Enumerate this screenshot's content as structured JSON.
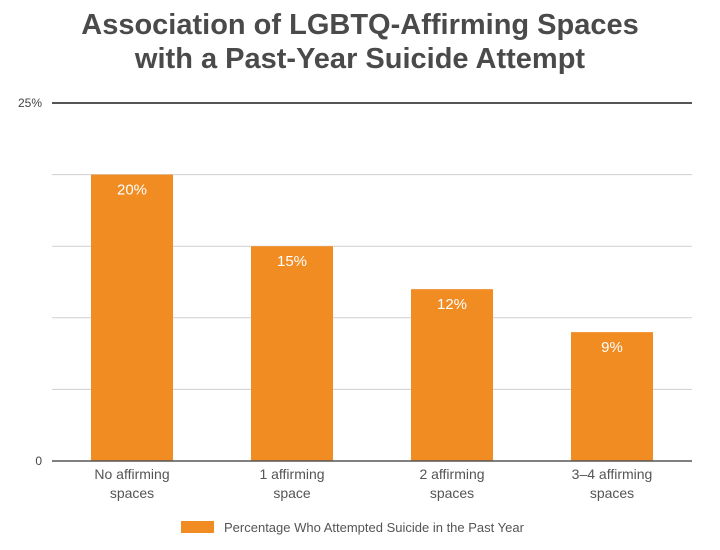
{
  "chart_data": {
    "type": "bar",
    "title_lines": [
      "Association of LGBTQ-Affirming Spaces",
      "with a Past-Year Suicide Attempt"
    ],
    "categories": [
      [
        "No affirming",
        "spaces"
      ],
      [
        "1 affirming",
        "space"
      ],
      [
        "2 affirming",
        "spaces"
      ],
      [
        "3–4 affirming",
        "spaces"
      ]
    ],
    "series": [
      {
        "name": "Percentage Who Attempted Suicide in the Past Year",
        "values": [
          20,
          15,
          12,
          9
        ],
        "color": "#f08c22"
      }
    ],
    "data_labels": [
      "20%",
      "15%",
      "12%",
      "9%"
    ],
    "ylim": [
      0,
      25
    ],
    "y_tick_labels": {
      "0": "0",
      "25": "25%"
    },
    "gridlines": [
      5,
      10,
      15,
      20
    ],
    "grid": true,
    "legend": "bottom",
    "xlabel": "",
    "ylabel": ""
  }
}
